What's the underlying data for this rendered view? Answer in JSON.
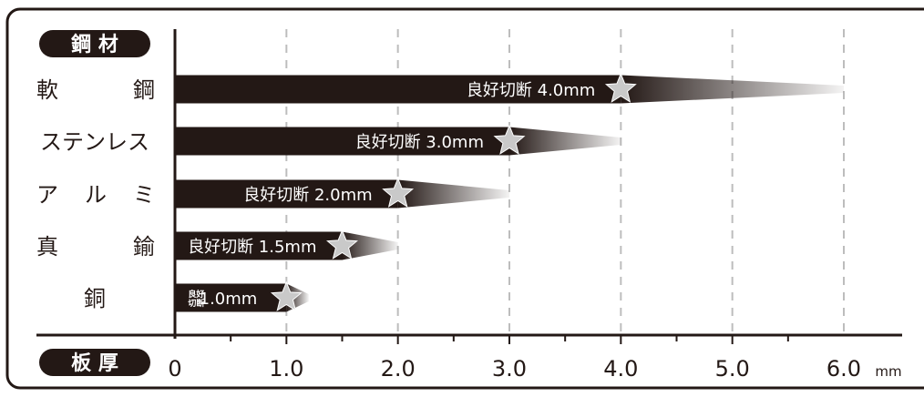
{
  "chart_data": {
    "type": "bar",
    "header_top": "鋼 材",
    "header_bottom": "板 厚",
    "x_unit": "mm",
    "xlim": [
      0,
      6.0
    ],
    "x_ticks": [
      "0",
      "1.0",
      "2.0",
      "3.0",
      "4.0",
      "5.0",
      "6.0"
    ],
    "x_tick_values": [
      0,
      1.0,
      2.0,
      3.0,
      4.0,
      5.0,
      6.0
    ],
    "grid": "vertical dashed",
    "categories": [
      {
        "label": [
          "軟",
          "鋼"
        ],
        "max": 6.0,
        "good": 4.0,
        "text": "良好切断 4.0mm"
      },
      {
        "label": [
          "ステンレス"
        ],
        "max": 4.0,
        "good": 3.0,
        "text": "良好切断 3.0mm"
      },
      {
        "label": [
          "ア",
          "ル",
          "ミ"
        ],
        "max": 3.0,
        "good": 2.0,
        "text": "良好切断 2.0mm"
      },
      {
        "label": [
          "真",
          "鍮"
        ],
        "max": 2.0,
        "good": 1.5,
        "text": "良好切断 1.5mm"
      },
      {
        "label": [
          "銅"
        ],
        "max": 1.2,
        "good": 1.0,
        "text": "1.0mm",
        "small_text": "良好切断"
      }
    ],
    "colors": {
      "bar": "#231815",
      "star": "#c9c9c9",
      "grid": "#bdbdbd"
    }
  }
}
